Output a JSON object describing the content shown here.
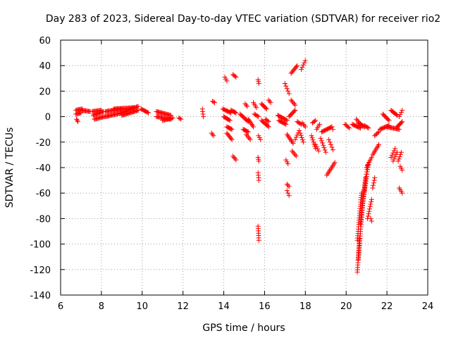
{
  "chart_data": {
    "type": "scatter",
    "title": "Day 283 of 2023, Sidereal Day-to-day VTEC variation (SDTVAR) for receiver rio2",
    "xlabel": "GPS time / hours",
    "ylabel": "SDTVAR / TECUs",
    "xlim": [
      6,
      24
    ],
    "ylim": [
      -140,
      60
    ],
    "xticks": [
      6,
      8,
      10,
      12,
      14,
      16,
      18,
      20,
      22,
      24
    ],
    "yticks": [
      -140,
      -120,
      -100,
      -80,
      -60,
      -40,
      -20,
      0,
      20,
      40,
      60
    ],
    "grid": true,
    "marker": "+",
    "color": "#ff0000",
    "segments": [
      {
        "x0": 6.75,
        "x1": 7.05,
        "y0": 5,
        "y1": 6
      },
      {
        "x0": 6.75,
        "x1": 7.0,
        "y0": 2,
        "y1": 3
      },
      {
        "x0": 6.78,
        "x1": 6.85,
        "y0": -2,
        "y1": -4
      },
      {
        "x0": 7.05,
        "x1": 7.45,
        "y0": 5,
        "y1": 4
      },
      {
        "x0": 7.6,
        "x1": 8.1,
        "y0": 1,
        "y1": 4
      },
      {
        "x0": 7.65,
        "x1": 8.15,
        "y0": -2,
        "y1": 0
      },
      {
        "x0": 7.55,
        "x1": 8.0,
        "y0": 4,
        "y1": 5
      },
      {
        "x0": 8.2,
        "x1": 9.0,
        "y0": 0,
        "y1": 3
      },
      {
        "x0": 8.2,
        "x1": 9.0,
        "y0": 4,
        "y1": 6
      },
      {
        "x0": 9.0,
        "x1": 9.8,
        "y0": 3,
        "y1": 8
      },
      {
        "x0": 9.0,
        "x1": 9.8,
        "y0": 1,
        "y1": 5
      },
      {
        "x0": 8.6,
        "x1": 9.6,
        "y0": 6,
        "y1": 7
      },
      {
        "x0": 9.95,
        "x1": 10.3,
        "y0": 6,
        "y1": 3
      },
      {
        "x0": 10.7,
        "x1": 11.4,
        "y0": 4,
        "y1": 1
      },
      {
        "x0": 10.7,
        "x1": 11.4,
        "y0": 0,
        "y1": -2
      },
      {
        "x0": 11.0,
        "x1": 11.5,
        "y0": -3,
        "y1": -1
      },
      {
        "x0": 11.8,
        "x1": 11.9,
        "y0": -1,
        "y1": -2
      },
      {
        "x0": 12.95,
        "x1": 13.0,
        "y0": 6,
        "y1": 0
      },
      {
        "x0": 13.45,
        "x1": 13.55,
        "y0": 12,
        "y1": 11
      },
      {
        "x0": 13.4,
        "x1": 13.5,
        "y0": -13,
        "y1": -15
      },
      {
        "x0": 13.95,
        "x1": 14.35,
        "y0": 6,
        "y1": 3
      },
      {
        "x0": 14.0,
        "x1": 14.3,
        "y0": 0,
        "y1": -3
      },
      {
        "x0": 14.05,
        "x1": 14.15,
        "y0": 31,
        "y1": 28
      },
      {
        "x0": 14.15,
        "x1": 14.4,
        "y0": -8,
        "y1": -10
      },
      {
        "x0": 14.15,
        "x1": 14.4,
        "y0": -13,
        "y1": -18
      },
      {
        "x0": 14.35,
        "x1": 14.6,
        "y0": 5,
        "y1": 3
      },
      {
        "x0": 14.45,
        "x1": 14.6,
        "y0": 33,
        "y1": 31
      },
      {
        "x0": 14.45,
        "x1": 14.6,
        "y0": -31,
        "y1": -34
      },
      {
        "x0": 14.8,
        "x1": 15.2,
        "y0": 2,
        "y1": -4
      },
      {
        "x0": 14.95,
        "x1": 15.2,
        "y0": -10,
        "y1": -12
      },
      {
        "x0": 15.05,
        "x1": 15.15,
        "y0": 10,
        "y1": 8
      },
      {
        "x0": 15.1,
        "x1": 15.3,
        "y0": -14,
        "y1": -18
      },
      {
        "x0": 15.2,
        "x1": 15.45,
        "y0": -2,
        "y1": -8
      },
      {
        "x0": 15.45,
        "x1": 15.6,
        "y0": 11,
        "y1": 7
      },
      {
        "x0": 15.5,
        "x1": 15.7,
        "y0": 2,
        "y1": 0
      },
      {
        "x0": 15.68,
        "x1": 15.72,
        "y0": -86,
        "y1": -97
      },
      {
        "x0": 15.68,
        "x1": 15.72,
        "y0": -44,
        "y1": -50
      },
      {
        "x0": 15.68,
        "x1": 15.72,
        "y0": -32,
        "y1": -35
      },
      {
        "x0": 15.68,
        "x1": 15.72,
        "y0": 29,
        "y1": 26
      },
      {
        "x0": 15.7,
        "x1": 15.8,
        "y0": -15,
        "y1": -18
      },
      {
        "x0": 15.85,
        "x1": 16.1,
        "y0": 10,
        "y1": 6
      },
      {
        "x0": 15.85,
        "x1": 16.2,
        "y0": -3,
        "y1": -8
      },
      {
        "x0": 16.05,
        "x1": 16.2,
        "y0": -2,
        "y1": -4
      },
      {
        "x0": 16.2,
        "x1": 16.3,
        "y0": 13,
        "y1": 11
      },
      {
        "x0": 16.65,
        "x1": 17.1,
        "y0": 1,
        "y1": -3
      },
      {
        "x0": 16.7,
        "x1": 17.05,
        "y0": -3,
        "y1": -6
      },
      {
        "x0": 17.0,
        "x1": 17.2,
        "y0": 26,
        "y1": 18
      },
      {
        "x0": 17.05,
        "x1": 17.15,
        "y0": -34,
        "y1": -37
      },
      {
        "x0": 17.1,
        "x1": 17.2,
        "y0": -53,
        "y1": -55
      },
      {
        "x0": 17.1,
        "x1": 17.2,
        "y0": -58,
        "y1": -62
      },
      {
        "x0": 17.1,
        "x1": 17.4,
        "y0": -14,
        "y1": -21
      },
      {
        "x0": 17.2,
        "x1": 17.5,
        "y0": 0,
        "y1": 5
      },
      {
        "x0": 17.3,
        "x1": 17.5,
        "y0": 13,
        "y1": 9
      },
      {
        "x0": 17.3,
        "x1": 17.6,
        "y0": 34,
        "y1": 40
      },
      {
        "x0": 17.35,
        "x1": 17.55,
        "y0": -27,
        "y1": -31
      },
      {
        "x0": 17.5,
        "x1": 17.7,
        "y0": -18,
        "y1": -11
      },
      {
        "x0": 17.6,
        "x1": 17.8,
        "y0": -4,
        "y1": -6
      },
      {
        "x0": 17.75,
        "x1": 17.9,
        "y0": -13,
        "y1": -20
      },
      {
        "x0": 17.8,
        "x1": 18.0,
        "y0": 37,
        "y1": 44
      },
      {
        "x0": 17.85,
        "x1": 18.0,
        "y0": -5,
        "y1": -8
      },
      {
        "x0": 18.3,
        "x1": 18.5,
        "y0": -15,
        "y1": -25
      },
      {
        "x0": 18.35,
        "x1": 18.5,
        "y0": -5,
        "y1": -3
      },
      {
        "x0": 18.5,
        "x1": 18.65,
        "y0": -22,
        "y1": -27
      },
      {
        "x0": 18.55,
        "x1": 18.7,
        "y0": -10,
        "y1": -6
      },
      {
        "x0": 18.75,
        "x1": 19.0,
        "y0": -17,
        "y1": -28
      },
      {
        "x0": 18.8,
        "x1": 19.3,
        "y0": -12,
        "y1": -8
      },
      {
        "x0": 19.05,
        "x1": 19.45,
        "y0": -46,
        "y1": -36
      },
      {
        "x0": 19.15,
        "x1": 19.35,
        "y0": -18,
        "y1": -26
      },
      {
        "x0": 19.3,
        "x1": 19.35,
        "y0": -8,
        "y1": -10
      },
      {
        "x0": 19.95,
        "x1": 20.15,
        "y0": -6,
        "y1": -9
      },
      {
        "x0": 20.3,
        "x1": 20.7,
        "y0": -6,
        "y1": -9
      },
      {
        "x0": 20.5,
        "x1": 20.7,
        "y0": -2,
        "y1": -6
      },
      {
        "x0": 20.6,
        "x1": 20.9,
        "y0": -5,
        "y1": -8
      },
      {
        "x0": 20.9,
        "x1": 21.1,
        "y0": -7,
        "y1": -9
      },
      {
        "x0": 20.55,
        "x1": 20.65,
        "y0": -122,
        "y1": -96
      },
      {
        "x0": 20.6,
        "x1": 20.8,
        "y0": -112,
        "y1": -70
      },
      {
        "x0": 20.55,
        "x1": 20.75,
        "y0": -97,
        "y1": -60
      },
      {
        "x0": 20.7,
        "x1": 20.95,
        "y0": -84,
        "y1": -48
      },
      {
        "x0": 20.8,
        "x1": 21.05,
        "y0": -70,
        "y1": -38
      },
      {
        "x0": 20.9,
        "x1": 21.1,
        "y0": -58,
        "y1": -36
      },
      {
        "x0": 21.05,
        "x1": 21.25,
        "y0": -80,
        "y1": -65
      },
      {
        "x0": 21.0,
        "x1": 21.25,
        "y0": -40,
        "y1": -32
      },
      {
        "x0": 21.2,
        "x1": 21.25,
        "y0": -80,
        "y1": -82
      },
      {
        "x0": 21.3,
        "x1": 21.4,
        "y0": -56,
        "y1": -48
      },
      {
        "x0": 21.3,
        "x1": 21.6,
        "y0": -30,
        "y1": -22
      },
      {
        "x0": 21.4,
        "x1": 21.6,
        "y0": -15,
        "y1": -12
      },
      {
        "x0": 21.65,
        "x1": 22.1,
        "y0": -10,
        "y1": -7
      },
      {
        "x0": 21.8,
        "x1": 22.1,
        "y0": 2,
        "y1": -3
      },
      {
        "x0": 22.2,
        "x1": 22.5,
        "y0": 5,
        "y1": 1
      },
      {
        "x0": 22.0,
        "x1": 22.6,
        "y0": -8,
        "y1": -10
      },
      {
        "x0": 22.2,
        "x1": 22.4,
        "y0": -32,
        "y1": -25
      },
      {
        "x0": 22.3,
        "x1": 22.5,
        "y0": -35,
        "y1": -28
      },
      {
        "x0": 22.5,
        "x1": 22.75,
        "y0": -8,
        "y1": -4
      },
      {
        "x0": 22.55,
        "x1": 22.7,
        "y0": -35,
        "y1": -28
      },
      {
        "x0": 22.65,
        "x1": 22.75,
        "y0": -39,
        "y1": -42
      },
      {
        "x0": 22.6,
        "x1": 22.75,
        "y0": -56,
        "y1": -60
      },
      {
        "x0": 22.6,
        "x1": 22.75,
        "y0": 0,
        "y1": 5
      }
    ]
  }
}
